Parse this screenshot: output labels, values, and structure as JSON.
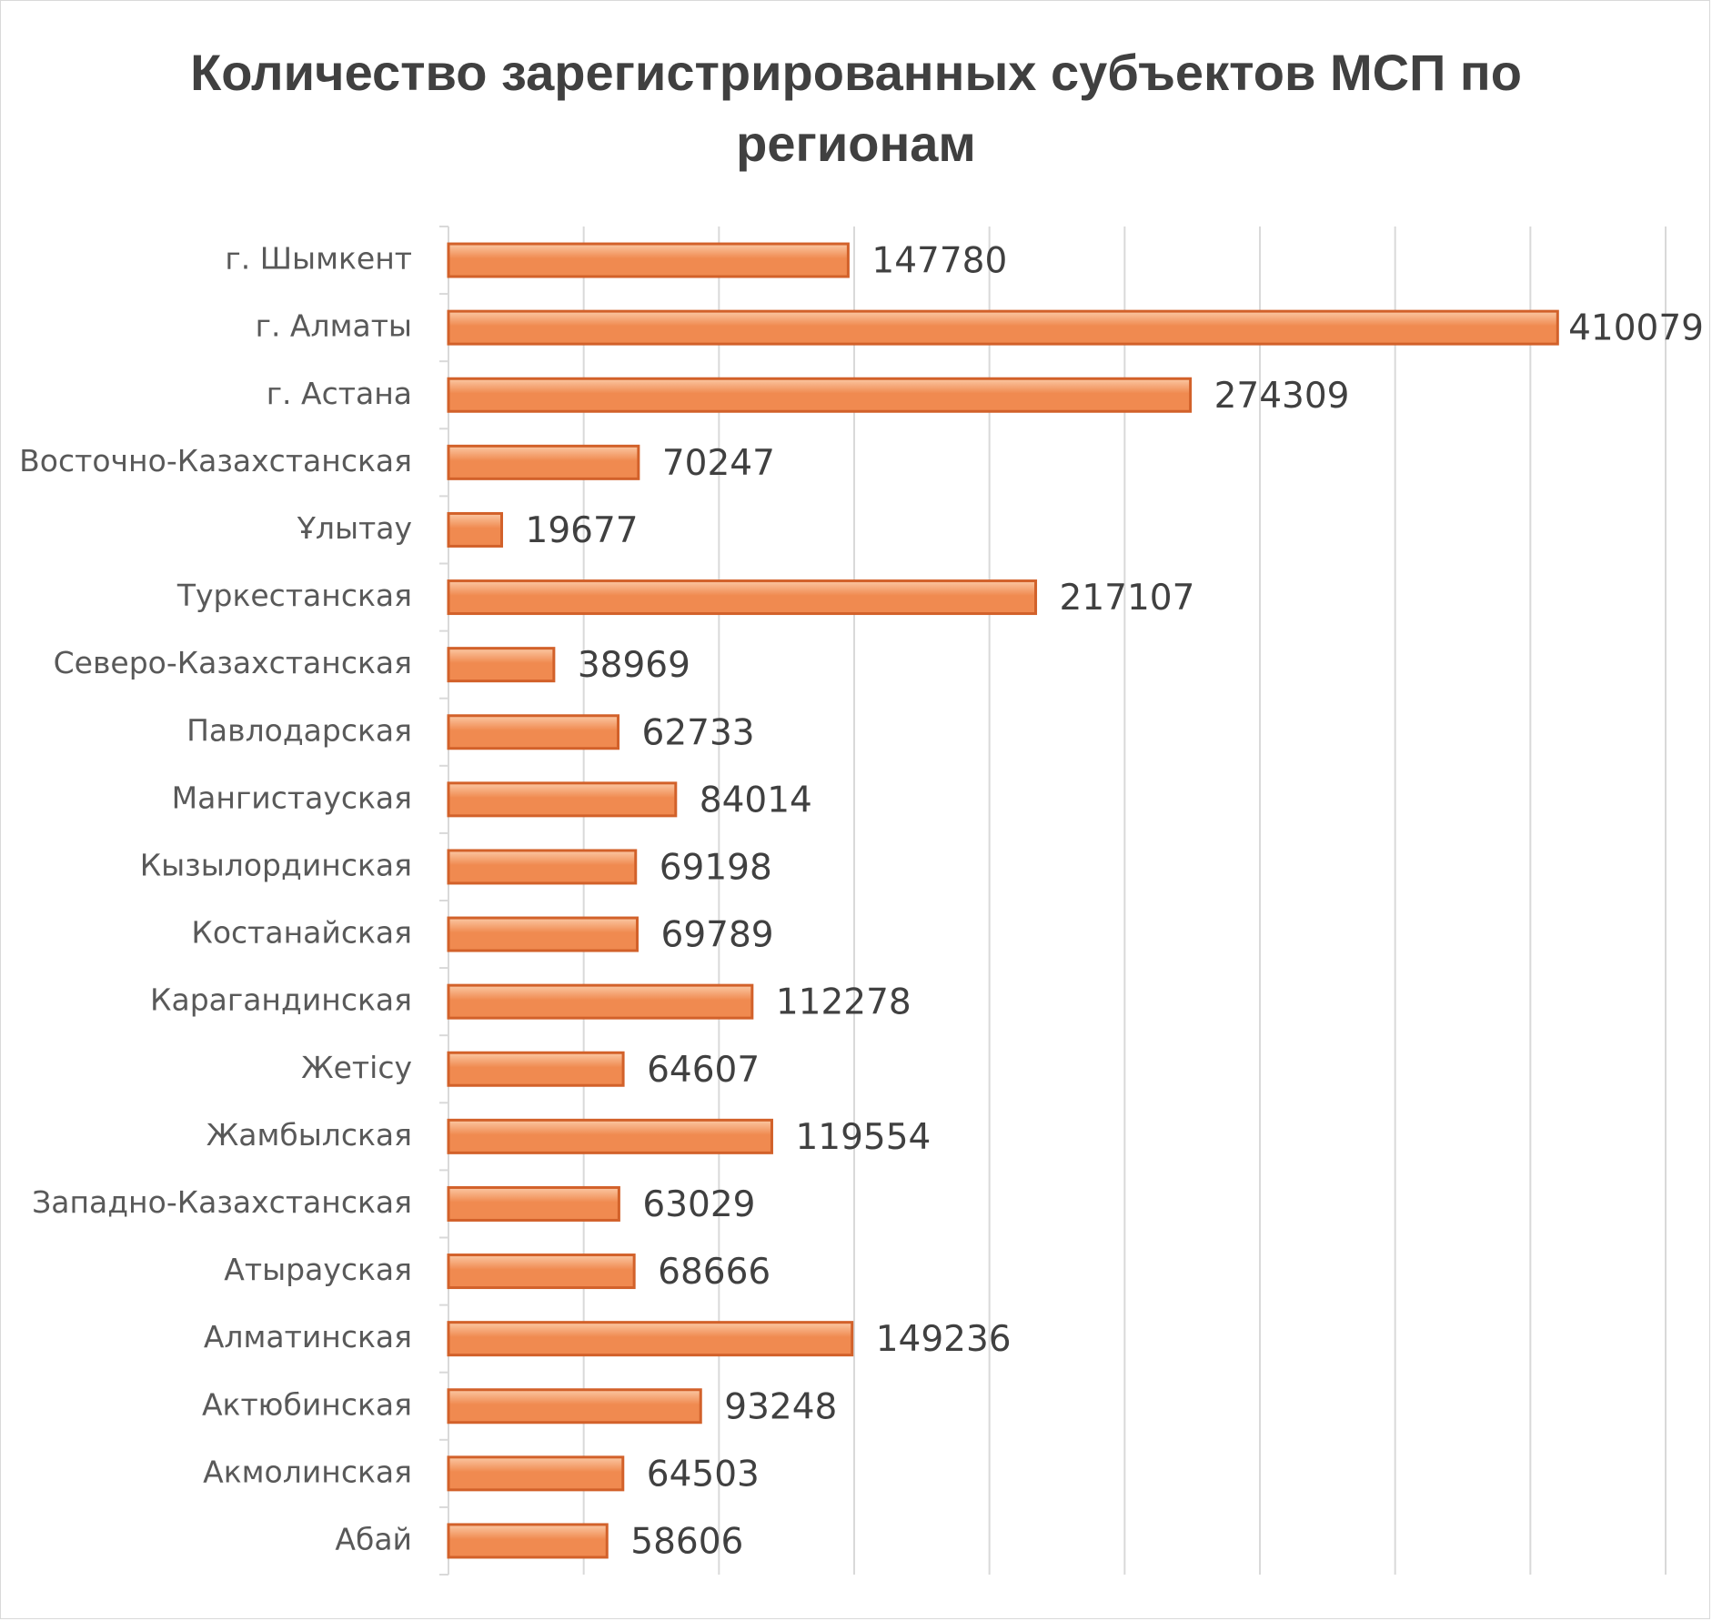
{
  "chart_data": {
    "type": "bar",
    "orientation": "horizontal",
    "title": "Количество зарегистрированных субъектов МСП по регионам",
    "categories": [
      "г. Шымкент",
      "г. Алматы",
      "г. Астана",
      "Восточно-Казахстанская",
      "Ұлытау",
      "Туркестанская",
      "Северо-Казахстанская",
      "Павлодарская",
      "Мангистауская",
      "Кызылординская",
      "Костанайская",
      "Карагандинская",
      "Жетісу",
      "Жамбылская",
      "Западно-Казахстанская",
      "Атырауская",
      "Алматинская",
      "Актюбинская",
      "Акмолинская",
      "Абай"
    ],
    "values": [
      147780,
      410079,
      274309,
      70247,
      19677,
      217107,
      38969,
      62733,
      84014,
      69198,
      69789,
      112278,
      64607,
      119554,
      63029,
      68666,
      149236,
      93248,
      64503,
      58606
    ],
    "data_labels": true,
    "xlim": [
      0,
      450000
    ],
    "x_gridline_step": 50000,
    "x_tick_labels_shown": false,
    "grid": true,
    "legend": "none",
    "bar_color": "#f08a50",
    "bar_highlight_color": "#fbc8a4",
    "bar_border_color": "#d2612a"
  }
}
